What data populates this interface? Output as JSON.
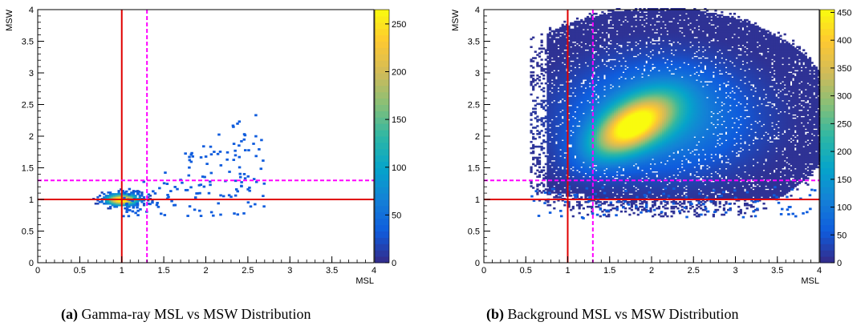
{
  "colors": {
    "threshold_line": "#e00000",
    "cut_line": "#ff00ff",
    "colormap": [
      "#352a87",
      "#0f5cdd",
      "#1481d6",
      "#06a4ca",
      "#2eb7a4",
      "#87bf77",
      "#d1bb59",
      "#fec832",
      "#f9fb0e"
    ]
  },
  "captions": [
    {
      "letter": "(a)",
      "text": "Gamma-ray MSL vs MSW Distribution"
    },
    {
      "letter": "(b)",
      "text": "Background MSL vs MSW Distribution"
    }
  ],
  "chart_data": [
    {
      "type": "heatmap",
      "xlabel": "MSL",
      "ylabel": "MSW",
      "xlim": [
        0,
        4
      ],
      "ylim": [
        0,
        4
      ],
      "xticks": [
        "0",
        "0.5",
        "1",
        "1.5",
        "2",
        "2.5",
        "3",
        "3.5",
        "4"
      ],
      "yticks": [
        "0",
        "0.5",
        "1",
        "1.5",
        "2",
        "2.5",
        "3",
        "3.5",
        "4"
      ],
      "colorbar": {
        "min": 0,
        "max": 265,
        "ticks": [
          "0",
          "50",
          "100",
          "150",
          "200",
          "250"
        ]
      },
      "peak": {
        "x": 1.0,
        "y": 1.0,
        "count": 265
      },
      "threshold_lines": {
        "x": 1,
        "y": 1
      },
      "cut_lines": {
        "x": 1.3,
        "y": 1.3
      },
      "grid": false
    },
    {
      "type": "heatmap",
      "xlabel": "MSL",
      "ylabel": "MSW",
      "xlim": [
        0,
        4
      ],
      "ylim": [
        0,
        4
      ],
      "xticks": [
        "0",
        "0.5",
        "1",
        "1.5",
        "2",
        "2.5",
        "3",
        "3.5",
        "4"
      ],
      "yticks": [
        "0",
        "0.5",
        "1",
        "1.5",
        "2",
        "2.5",
        "3",
        "3.5",
        "4"
      ],
      "colorbar": {
        "min": 0,
        "max": 455,
        "ticks": [
          "0",
          "50",
          "100",
          "150",
          "200",
          "250",
          "300",
          "350",
          "400",
          "450"
        ]
      },
      "peak": {
        "x": 1.75,
        "y": 2.15,
        "count": 455
      },
      "threshold_lines": {
        "x": 1,
        "y": 1
      },
      "cut_lines": {
        "x": 1.3,
        "y": 1.3
      },
      "grid": false
    }
  ]
}
